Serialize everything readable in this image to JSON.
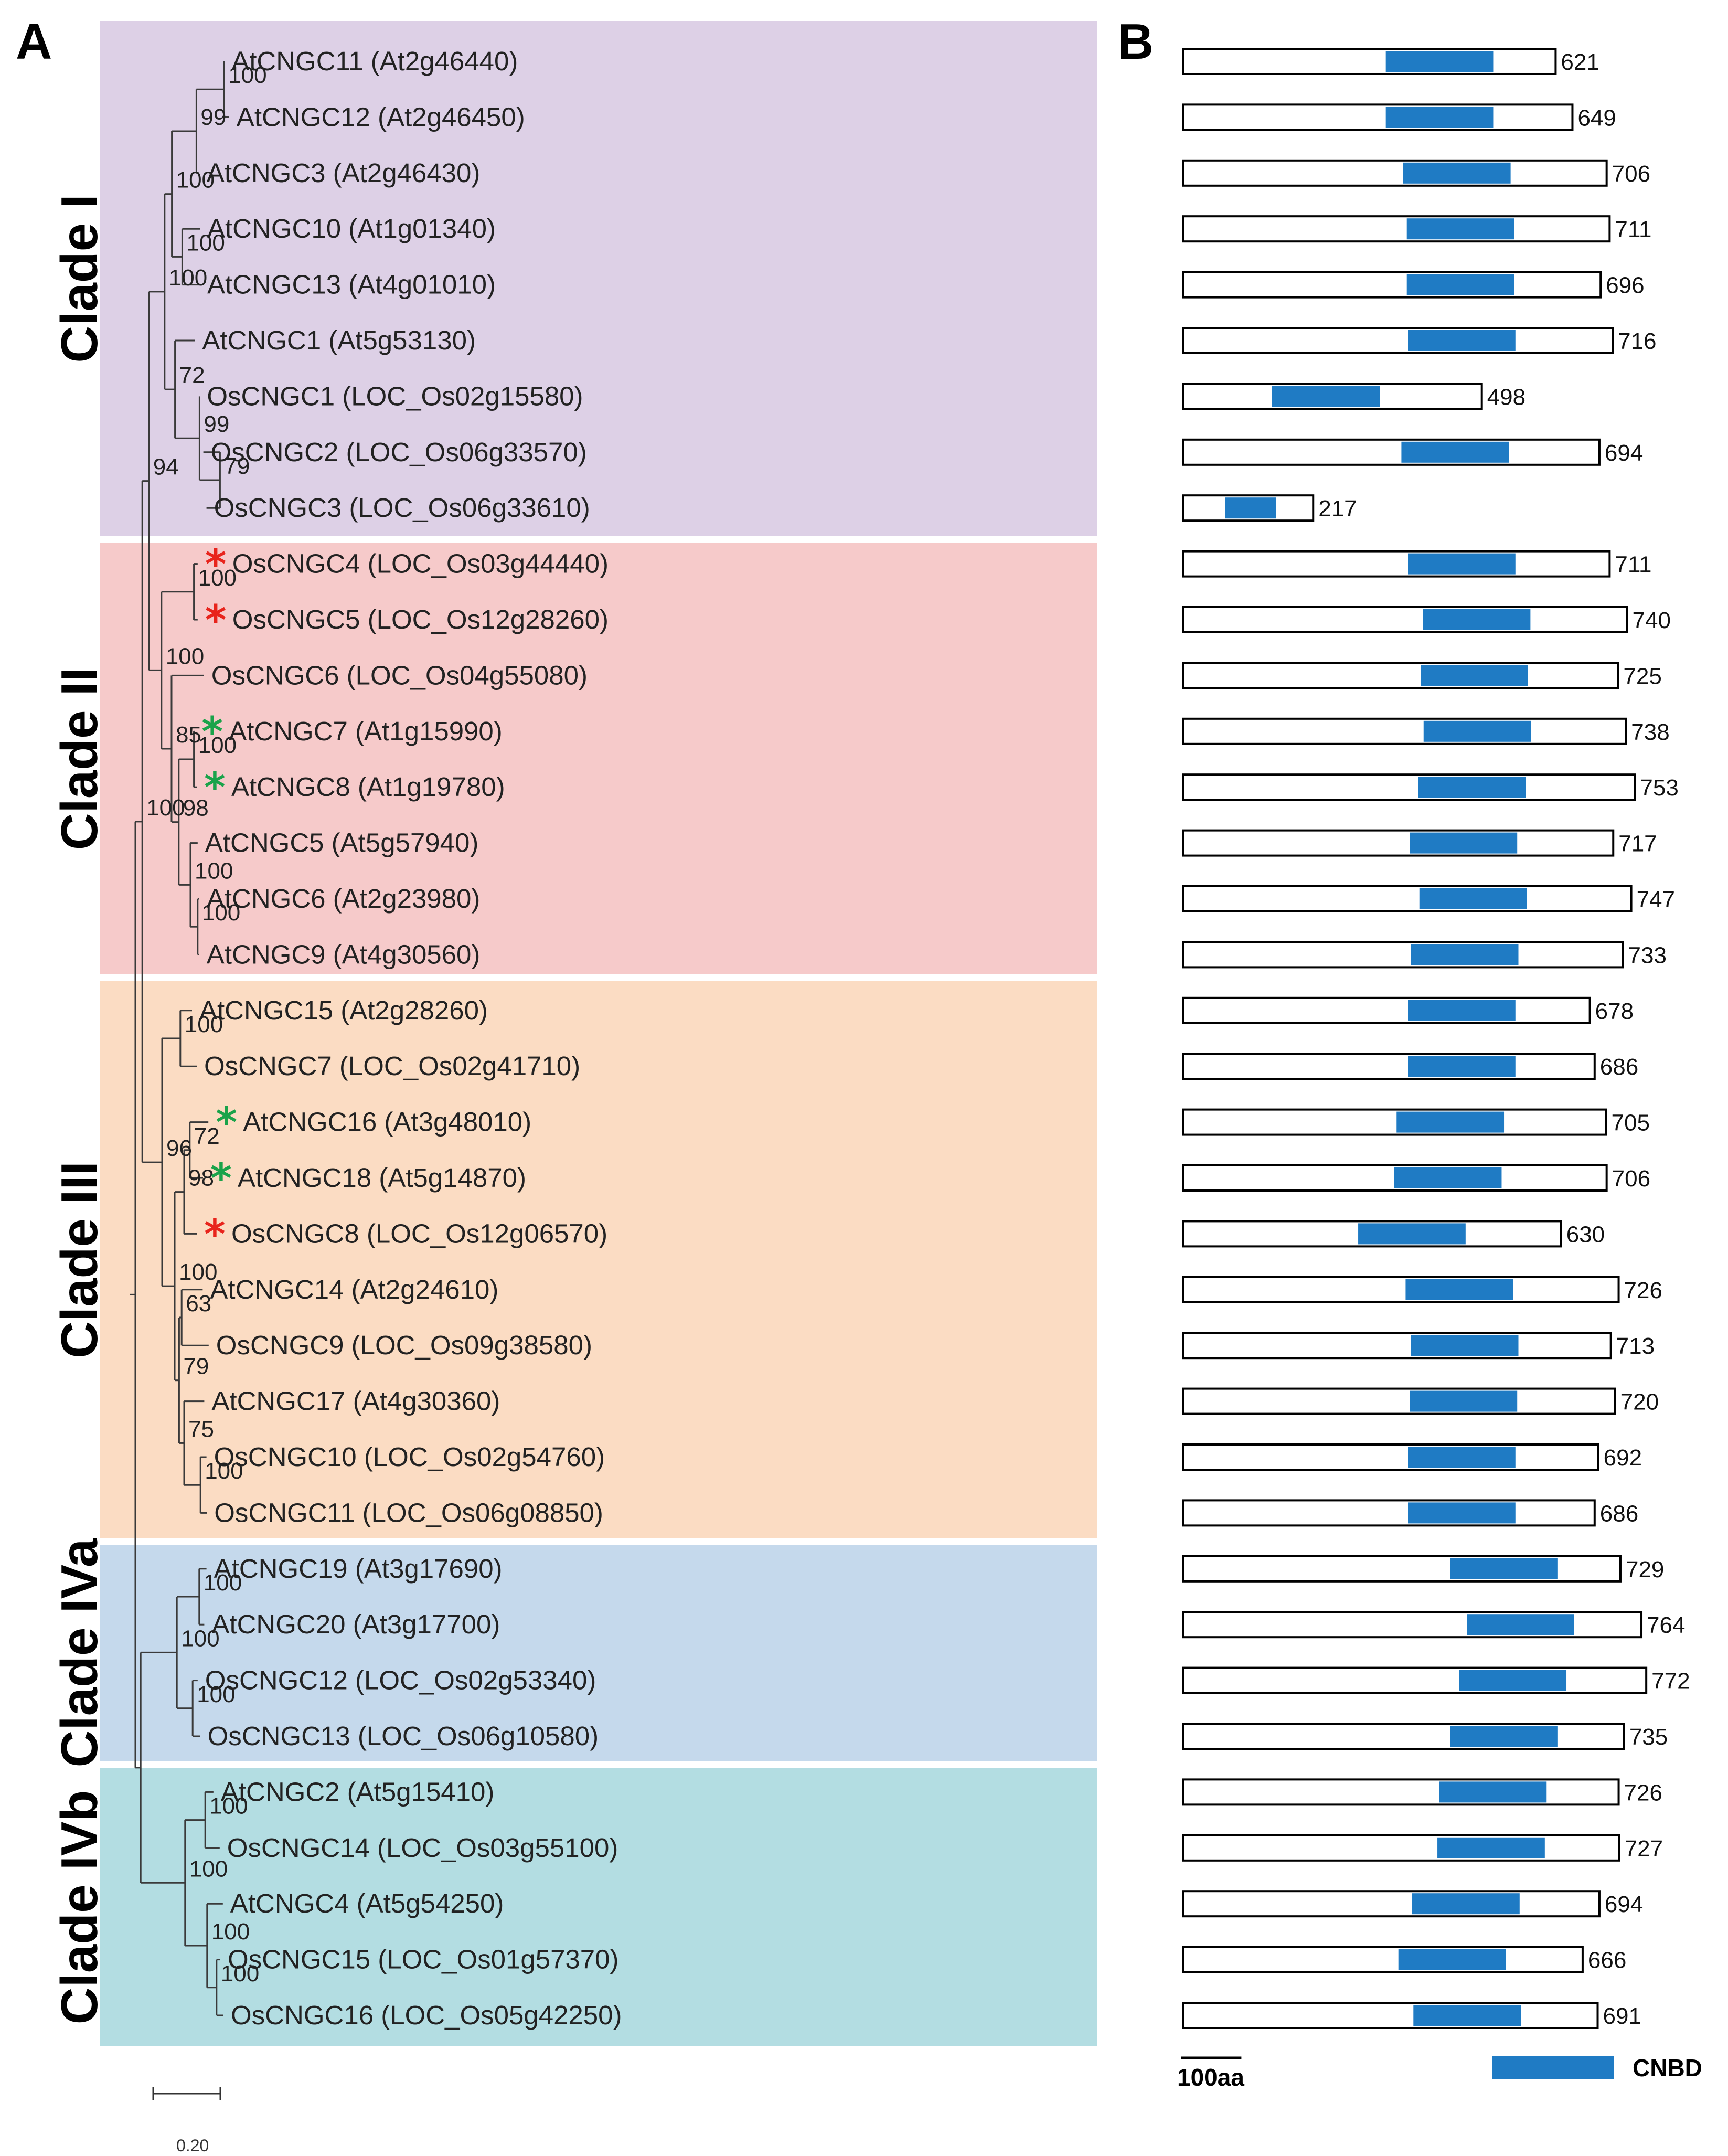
{
  "panels": {
    "a": "A",
    "b": "B"
  },
  "clades": [
    {
      "label": "Clade I",
      "color": "#ddd0e6",
      "first": 0,
      "last": 8
    },
    {
      "label": "Clade II",
      "color": "#f6caca",
      "first": 9,
      "last": 16
    },
    {
      "label": "Clade III",
      "color": "#fbdcc3",
      "first": 17,
      "last": 26
    },
    {
      "label": "Clade IVa",
      "color": "#c5d9ec",
      "first": 27,
      "last": 30
    },
    {
      "label": "Clade IVb",
      "color": "#b3dde2",
      "first": 31,
      "last": 35
    }
  ],
  "genes": [
    {
      "name": "AtCNGC11 (At2g46440)",
      "length": 621,
      "cnbd": [
        338,
        517
      ],
      "star": ""
    },
    {
      "name": "AtCNGC12 (At2g46450)",
      "length": 649,
      "cnbd": [
        338,
        517
      ],
      "star": ""
    },
    {
      "name": "AtCNGC3 (At2g46430)",
      "length": 706,
      "cnbd": [
        367,
        546
      ],
      "star": ""
    },
    {
      "name": "AtCNGC10 (At1g01340)",
      "length": 711,
      "cnbd": [
        373,
        552
      ],
      "star": ""
    },
    {
      "name": "AtCNGC13 (At4g01010)",
      "length": 696,
      "cnbd": [
        373,
        552
      ],
      "star": ""
    },
    {
      "name": "AtCNGC1  (At5g53130)",
      "length": 716,
      "cnbd": [
        375,
        554
      ],
      "star": ""
    },
    {
      "name": "OsCNGC1 (LOC_Os02g15580)",
      "length": 498,
      "cnbd": [
        148,
        328
      ],
      "star": ""
    },
    {
      "name": "OsCNGC2 (LOC_Os06g33570)",
      "length": 694,
      "cnbd": [
        364,
        543
      ],
      "star": ""
    },
    {
      "name": "OsCNGC3 (LOC_Os06g33610)",
      "length": 217,
      "cnbd": [
        70,
        155
      ],
      "star": ""
    },
    {
      "name": "OsCNGC4 (LOC_Os03g44440)",
      "length": 711,
      "cnbd": [
        375,
        554
      ],
      "star": "red"
    },
    {
      "name": "OsCNGC5 (LOC_Os12g28260)",
      "length": 740,
      "cnbd": [
        400,
        579
      ],
      "star": "red"
    },
    {
      "name": "OsCNGC6 (LOC_Os04g55080)",
      "length": 725,
      "cnbd": [
        396,
        575
      ],
      "star": ""
    },
    {
      "name": "AtCNGC7 (At1g15990)",
      "length": 738,
      "cnbd": [
        401,
        580
      ],
      "star": "green"
    },
    {
      "name": "AtCNGC8 (At1g19780)",
      "length": 753,
      "cnbd": [
        392,
        571
      ],
      "star": "green"
    },
    {
      "name": "AtCNGC5 (At5g57940)",
      "length": 717,
      "cnbd": [
        378,
        557
      ],
      "star": ""
    },
    {
      "name": "AtCNGC6 (At2g23980)",
      "length": 747,
      "cnbd": [
        394,
        573
      ],
      "star": ""
    },
    {
      "name": "AtCNGC9 (At4g30560)",
      "length": 733,
      "cnbd": [
        380,
        559
      ],
      "star": ""
    },
    {
      "name": "AtCNGC15 (At2g28260)",
      "length": 678,
      "cnbd": [
        375,
        554
      ],
      "star": ""
    },
    {
      "name": "OsCNGC7 (LOC_Os02g41710)",
      "length": 686,
      "cnbd": [
        375,
        554
      ],
      "star": ""
    },
    {
      "name": "AtCNGC16 (At3g48010)",
      "length": 705,
      "cnbd": [
        356,
        535
      ],
      "star": "green"
    },
    {
      "name": "AtCNGC18 (At5g14870)",
      "length": 706,
      "cnbd": [
        352,
        531
      ],
      "star": "green"
    },
    {
      "name": "OsCNGC8 (LOC_Os12g06570)",
      "length": 630,
      "cnbd": [
        292,
        471
      ],
      "star": "red"
    },
    {
      "name": "AtCNGC14 (At2g24610)",
      "length": 726,
      "cnbd": [
        371,
        550
      ],
      "star": ""
    },
    {
      "name": "OsCNGC9 (LOC_Os09g38580)",
      "length": 713,
      "cnbd": [
        380,
        559
      ],
      "star": ""
    },
    {
      "name": "AtCNGC17 (At4g30360)",
      "length": 720,
      "cnbd": [
        378,
        557
      ],
      "star": ""
    },
    {
      "name": "OsCNGC10 (LOC_Os02g54760)",
      "length": 692,
      "cnbd": [
        375,
        554
      ],
      "star": ""
    },
    {
      "name": "OsCNGC11 (LOC_Os06g08850)",
      "length": 686,
      "cnbd": [
        375,
        554
      ],
      "star": ""
    },
    {
      "name": "AtCNGC19 (At3g17690)",
      "length": 729,
      "cnbd": [
        445,
        624
      ],
      "star": ""
    },
    {
      "name": "AtCNGC20 (At3g17700)",
      "length": 764,
      "cnbd": [
        473,
        652
      ],
      "star": ""
    },
    {
      "name": "OsCNGC12 (LOC_Os02g53340)",
      "length": 772,
      "cnbd": [
        460,
        639
      ],
      "star": ""
    },
    {
      "name": "OsCNGC13 (LOC_Os06g10580)",
      "length": 735,
      "cnbd": [
        445,
        624
      ],
      "star": ""
    },
    {
      "name": "AtCNGC2 (At5g15410)",
      "length": 726,
      "cnbd": [
        427,
        606
      ],
      "star": ""
    },
    {
      "name": "OsCNGC14 (LOC_Os03g55100)",
      "length": 727,
      "cnbd": [
        424,
        603
      ],
      "star": ""
    },
    {
      "name": "AtCNGC4 (At5g54250)",
      "length": 694,
      "cnbd": [
        382,
        561
      ],
      "star": ""
    },
    {
      "name": "OsCNGC15 (LOC_Os01g57370)",
      "length": 666,
      "cnbd": [
        359,
        538
      ],
      "star": ""
    },
    {
      "name": "OsCNGC16 (LOC_Os05g42250)",
      "length": 691,
      "cnbd": [
        384,
        563
      ],
      "star": ""
    }
  ],
  "tree": {
    "nodes": [
      {
        "id": "A",
        "x": 0.282,
        "kids": [
          "L0",
          "L1"
        ],
        "support": "100"
      },
      {
        "id": "B",
        "x": 0.194,
        "kids": [
          "A",
          "L2"
        ],
        "support": "99"
      },
      {
        "id": "C",
        "x": 0.149,
        "kids": [
          "L3",
          "L4"
        ],
        "support": "100"
      },
      {
        "id": "D",
        "x": 0.116,
        "kids": [
          "B",
          "C"
        ],
        "support": "100"
      },
      {
        "id": "E",
        "x": 0.269,
        "kids": [
          "L7",
          "L8"
        ],
        "support": "79"
      },
      {
        "id": "F",
        "x": 0.204,
        "kids": [
          "L6",
          "E"
        ],
        "support": "99"
      },
      {
        "id": "G",
        "x": 0.126,
        "kids": [
          "L5",
          "F"
        ],
        "support": "72"
      },
      {
        "id": "H",
        "x": 0.093,
        "kids": [
          "D",
          "G"
        ],
        "support": "100"
      },
      {
        "id": "I",
        "x": 0.186,
        "kids": [
          "L9",
          "L10"
        ],
        "support": "100"
      },
      {
        "id": "J",
        "x": 0.186,
        "kids": [
          "L12",
          "L13"
        ],
        "support": "100"
      },
      {
        "id": "K",
        "x": 0.198,
        "kids": [
          "L15",
          "L16"
        ],
        "support": "100"
      },
      {
        "id": "Lk",
        "x": 0.175,
        "kids": [
          "L14",
          "K"
        ],
        "support": "100"
      },
      {
        "id": "M",
        "x": 0.138,
        "kids": [
          "J",
          "Lk"
        ],
        "support": "98"
      },
      {
        "id": "N",
        "x": 0.115,
        "kids": [
          "L11",
          "M"
        ],
        "support": "85"
      },
      {
        "id": "O",
        "x": 0.083,
        "kids": [
          "I",
          "N"
        ],
        "support": "100"
      },
      {
        "id": "P",
        "x": 0.043,
        "kids": [
          "H",
          "O"
        ],
        "support": "94"
      },
      {
        "id": "Q",
        "x": 0.143,
        "kids": [
          "L17",
          "L18"
        ],
        "support": "100"
      },
      {
        "id": "R",
        "x": 0.173,
        "kids": [
          "L19",
          "L20"
        ],
        "support": "72"
      },
      {
        "id": "S",
        "x": 0.155,
        "kids": [
          "R",
          "L21"
        ],
        "support": "98"
      },
      {
        "id": "T",
        "x": 0.147,
        "kids": [
          "L22",
          "L23"
        ],
        "support": "63"
      },
      {
        "id": "U",
        "x": 0.207,
        "kids": [
          "L25",
          "L26"
        ],
        "support": "100"
      },
      {
        "id": "V",
        "x": 0.155,
        "kids": [
          "L24",
          "U"
        ],
        "support": "75"
      },
      {
        "id": "W",
        "x": 0.139,
        "kids": [
          "T",
          "V"
        ],
        "support": "79"
      },
      {
        "id": "X",
        "x": 0.125,
        "kids": [
          "S",
          "W"
        ],
        "support": "100"
      },
      {
        "id": "Y",
        "x": 0.085,
        "kids": [
          "Q",
          "X"
        ],
        "support": "96"
      },
      {
        "id": "Z",
        "x": 0.022,
        "kids": [
          "P",
          "Y"
        ],
        "support": "100"
      },
      {
        "id": "a",
        "x": 0.203,
        "kids": [
          "L27",
          "L28"
        ],
        "support": "100"
      },
      {
        "id": "b",
        "x": 0.182,
        "kids": [
          "L29",
          "L30"
        ],
        "support": "100"
      },
      {
        "id": "c",
        "x": 0.132,
        "kids": [
          "a",
          "b"
        ],
        "support": "100"
      },
      {
        "id": "d",
        "x": 0.222,
        "kids": [
          "L31",
          "L32"
        ],
        "support": "100"
      },
      {
        "id": "e",
        "x": 0.258,
        "kids": [
          "L34",
          "L35"
        ],
        "support": "100"
      },
      {
        "id": "f",
        "x": 0.228,
        "kids": [
          "L33",
          "e"
        ],
        "support": "100"
      },
      {
        "id": "g",
        "x": 0.158,
        "kids": [
          "d",
          "f"
        ],
        "support": "100"
      },
      {
        "id": "h",
        "x": 0.017,
        "kids": [
          "c",
          "g"
        ],
        "support": ""
      },
      {
        "id": "root",
        "x": 0.0,
        "kids": [
          "Z",
          "h"
        ],
        "support": ""
      }
    ],
    "leaf_x": [
      0.282,
      0.298,
      0.203,
      0.205,
      0.205,
      0.189,
      0.204,
      0.216,
      0.226,
      0.198,
      0.198,
      0.218,
      0.187,
      0.195,
      0.198,
      0.203,
      0.203,
      0.18,
      0.195,
      0.232,
      0.215,
      0.195,
      0.214,
      0.233,
      0.219,
      0.226,
      0.227,
      0.226,
      0.219,
      0.198,
      0.206,
      0.248,
      0.268,
      0.278,
      0.27,
      0.28
    ]
  },
  "legend": {
    "cnbd_label": "CNBD",
    "cnbd_color": "#1f7bc4",
    "scale_bar_label": "100aa",
    "scale_bar_aa": 100,
    "tree_scale": "0.20"
  }
}
